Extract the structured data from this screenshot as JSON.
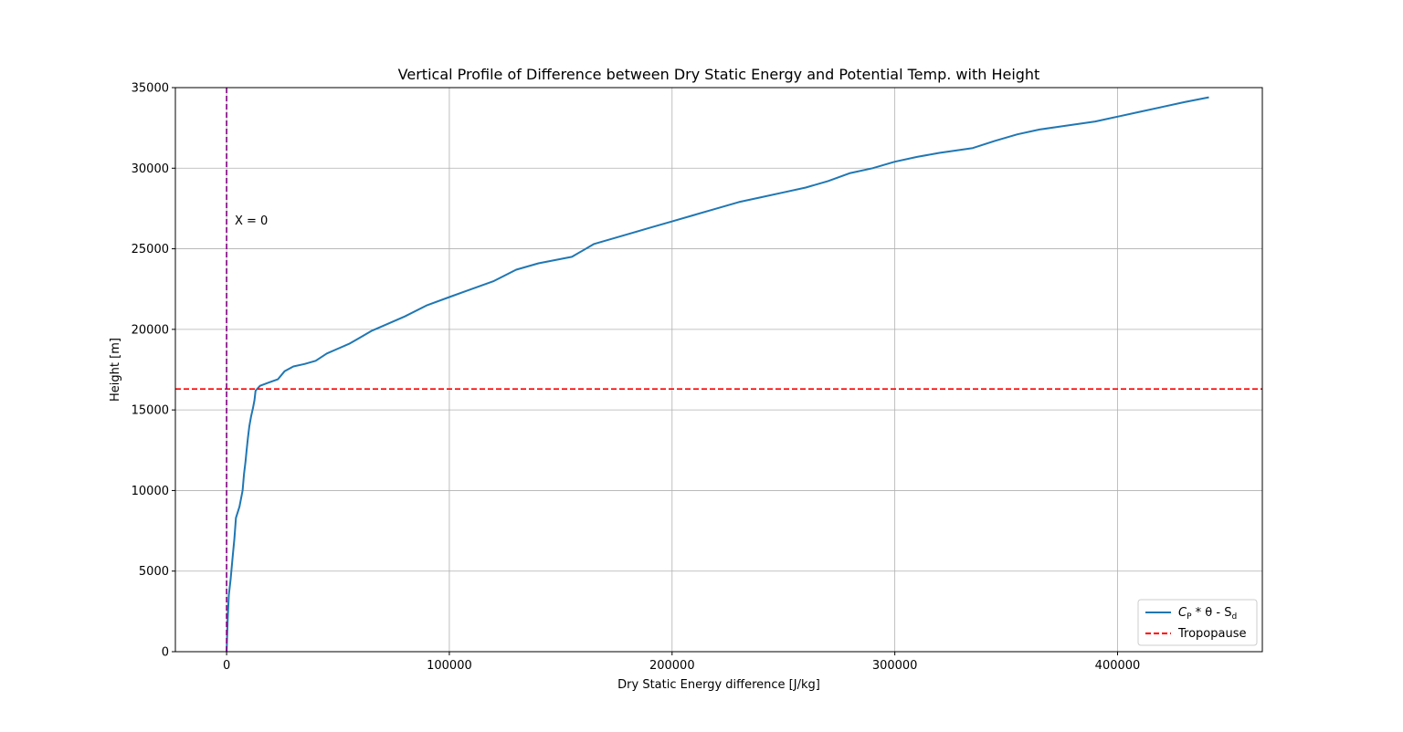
{
  "chart_data": {
    "type": "line",
    "title": "Vertical Profile of Difference between Dry Static Energy and Potential Temp. with Height",
    "xlabel": "Dry Static Energy difference [J/kg]",
    "ylabel": "Height [m]",
    "xlim": [
      -23000,
      465000
    ],
    "ylim": [
      0,
      35000
    ],
    "x_ticks": [
      0,
      100000,
      200000,
      300000,
      400000
    ],
    "y_ticks": [
      0,
      5000,
      10000,
      15000,
      20000,
      25000,
      30000,
      35000
    ],
    "grid": true,
    "legend_position": "bottom-right",
    "series": [
      {
        "name_prefix": "C",
        "name_prefix_sub": "P",
        "name_mid": " * θ - S",
        "name_suffix_sub": "d",
        "color": "#1f77b4",
        "style": "solid",
        "points": [
          [
            0,
            0
          ],
          [
            500,
            2000
          ],
          [
            1000,
            3500
          ],
          [
            1800,
            4500
          ],
          [
            2800,
            6000
          ],
          [
            3500,
            7000
          ],
          [
            4200,
            8300
          ],
          [
            5800,
            9000
          ],
          [
            7200,
            10000
          ],
          [
            7800,
            11000
          ],
          [
            8500,
            11800
          ],
          [
            9000,
            12500
          ],
          [
            9500,
            13200
          ],
          [
            10200,
            14000
          ],
          [
            11000,
            14600
          ],
          [
            11800,
            15100
          ],
          [
            12500,
            15600
          ],
          [
            13000,
            16200
          ],
          [
            15000,
            16500
          ],
          [
            19000,
            16700
          ],
          [
            23000,
            16900
          ],
          [
            26000,
            17400
          ],
          [
            30000,
            17700
          ],
          [
            35000,
            17850
          ],
          [
            40000,
            18050
          ],
          [
            45000,
            18500
          ],
          [
            50000,
            18800
          ],
          [
            55000,
            19100
          ],
          [
            60000,
            19500
          ],
          [
            65000,
            19900
          ],
          [
            70000,
            20200
          ],
          [
            80000,
            20800
          ],
          [
            90000,
            21500
          ],
          [
            100000,
            22000
          ],
          [
            110000,
            22500
          ],
          [
            120000,
            23000
          ],
          [
            130000,
            23700
          ],
          [
            140000,
            24100
          ],
          [
            155000,
            24500
          ],
          [
            165000,
            25300
          ],
          [
            180000,
            25900
          ],
          [
            190000,
            26300
          ],
          [
            200000,
            26700
          ],
          [
            210000,
            27100
          ],
          [
            220000,
            27500
          ],
          [
            230000,
            27900
          ],
          [
            240000,
            28200
          ],
          [
            250000,
            28500
          ],
          [
            260000,
            28800
          ],
          [
            270000,
            29200
          ],
          [
            280000,
            29700
          ],
          [
            290000,
            30000
          ],
          [
            300000,
            30400
          ],
          [
            310000,
            30700
          ],
          [
            320000,
            30950
          ],
          [
            335000,
            31250
          ],
          [
            345000,
            31700
          ],
          [
            355000,
            32100
          ],
          [
            365000,
            32400
          ],
          [
            375000,
            32600
          ],
          [
            390000,
            32900
          ],
          [
            400000,
            33200
          ],
          [
            410000,
            33500
          ],
          [
            420000,
            33800
          ],
          [
            430000,
            34100
          ],
          [
            441000,
            34400
          ]
        ]
      },
      {
        "name": "Tropopause",
        "color": "#ff0000",
        "style": "dashed",
        "kind": "horizontal",
        "y": 16300
      },
      {
        "color": "#800080",
        "style": "dashed",
        "kind": "vertical",
        "x": 0
      }
    ],
    "annotations": [
      {
        "text": "X = 0",
        "x": 2000,
        "y": 26500
      }
    ]
  }
}
